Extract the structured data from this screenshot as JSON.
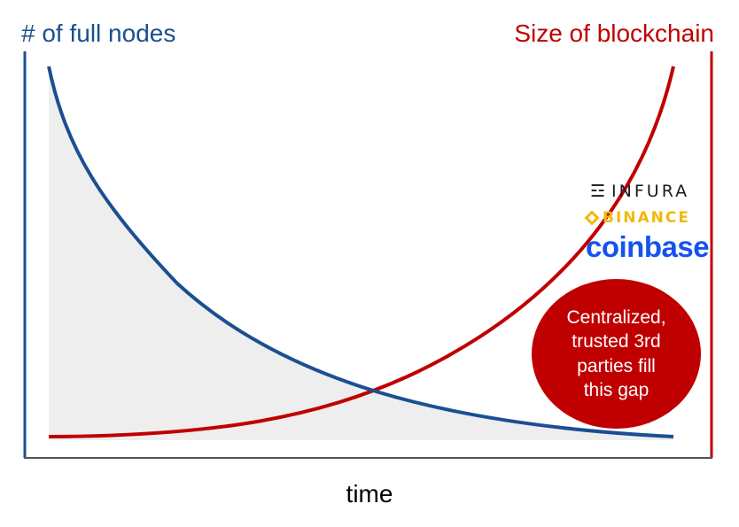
{
  "labels": {
    "left_axis": "# of full nodes",
    "right_axis": "Size of blockchain",
    "x_axis": "time"
  },
  "logos": {
    "infura": "INFURA",
    "binance": "BINANCE",
    "coinbase": "coinbase"
  },
  "callout": {
    "text": "Centralized,\ntrusted 3rd\nparties fill\nthis gap"
  },
  "colors": {
    "nodes": "#1b4f91",
    "blockchain": "#c00000",
    "gap_fill": "#eeeeee",
    "axis": "#555555"
  }
}
